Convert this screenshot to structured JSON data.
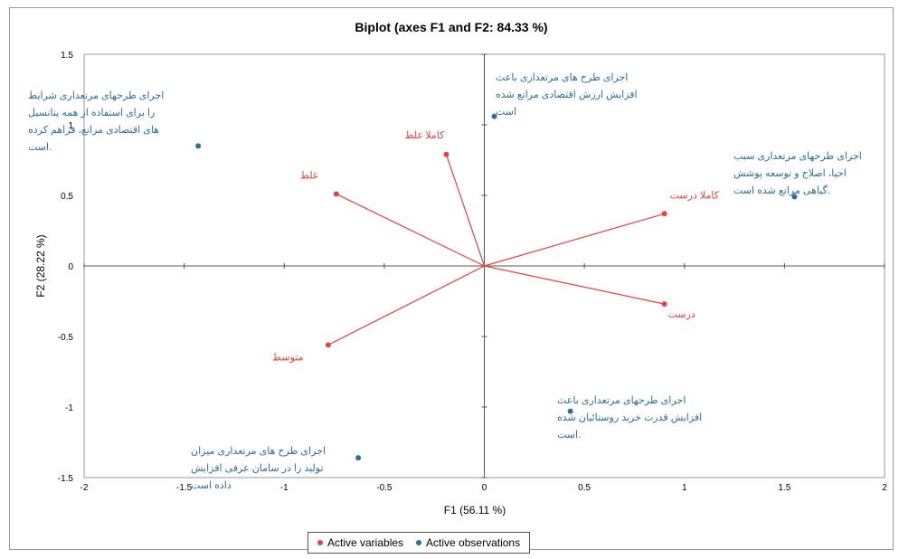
{
  "chart_data": {
    "type": "scatter",
    "title": "Biplot (axes F1 and F2: 84.33 %)",
    "xlabel": "F1 (56.11 %)",
    "ylabel": "F2 (28.22 %)",
    "xlim": [
      -2,
      2
    ],
    "ylim": [
      -1.5,
      1.5
    ],
    "x_ticks": [
      "-2",
      "-1.5",
      "-1",
      "-0.5",
      "0",
      "0.5",
      "1",
      "1.5",
      "2"
    ],
    "y_ticks": [
      "1.5",
      "1",
      "0.5",
      "0",
      "-0.5",
      "-1",
      "-1.5"
    ],
    "grid": false,
    "legend_position": "bottom",
    "series": [
      {
        "name": "Active variables",
        "color": "#e8423f",
        "points": [
          {
            "label": "کاملا غلط",
            "x": -0.19,
            "y": 0.79
          },
          {
            "label": "غلط",
            "x": -0.74,
            "y": 0.51
          },
          {
            "label": "کاملا درست",
            "x": 0.9,
            "y": 0.37
          },
          {
            "label": "درست",
            "x": 0.9,
            "y": -0.27
          },
          {
            "label": "متوسط",
            "x": -0.78,
            "y": -0.56
          }
        ]
      },
      {
        "name": "Active observations",
        "color": "#2e6e99",
        "points": [
          {
            "x": -1.43,
            "y": 0.85,
            "lines": [
              "اجرای طرحهای مرتعداری شرایط",
              "را برای استفاده از همه پتانسیل",
              "های اقتصادی مراتع، فراهم کرده",
              "است."
            ]
          },
          {
            "x": 0.05,
            "y": 1.06,
            "lines": [
              "اجرای طرح های مرتعداری باعث",
              "افزایش ارزش اقتصادی مراتع شده",
              "است"
            ]
          },
          {
            "x": 1.55,
            "y": 0.49,
            "lines": [
              "اجرای طرحهای مرتعداری سبب",
              "احیا، اصلاح و توسعه پوشش",
              "گیاهی مراتع شده است."
            ]
          },
          {
            "x": 0.43,
            "y": -1.03,
            "lines": [
              "اجرای طرحهای مرتعداری باعث",
              "افزایش قدرت خرید روستائیان شده",
              "است."
            ]
          },
          {
            "x": -0.63,
            "y": -1.36,
            "lines": [
              "اجرای طرح های مرتعداری میزان",
              "تولید را در سامان عرفی افزایش",
              "داده است"
            ]
          }
        ]
      }
    ]
  }
}
